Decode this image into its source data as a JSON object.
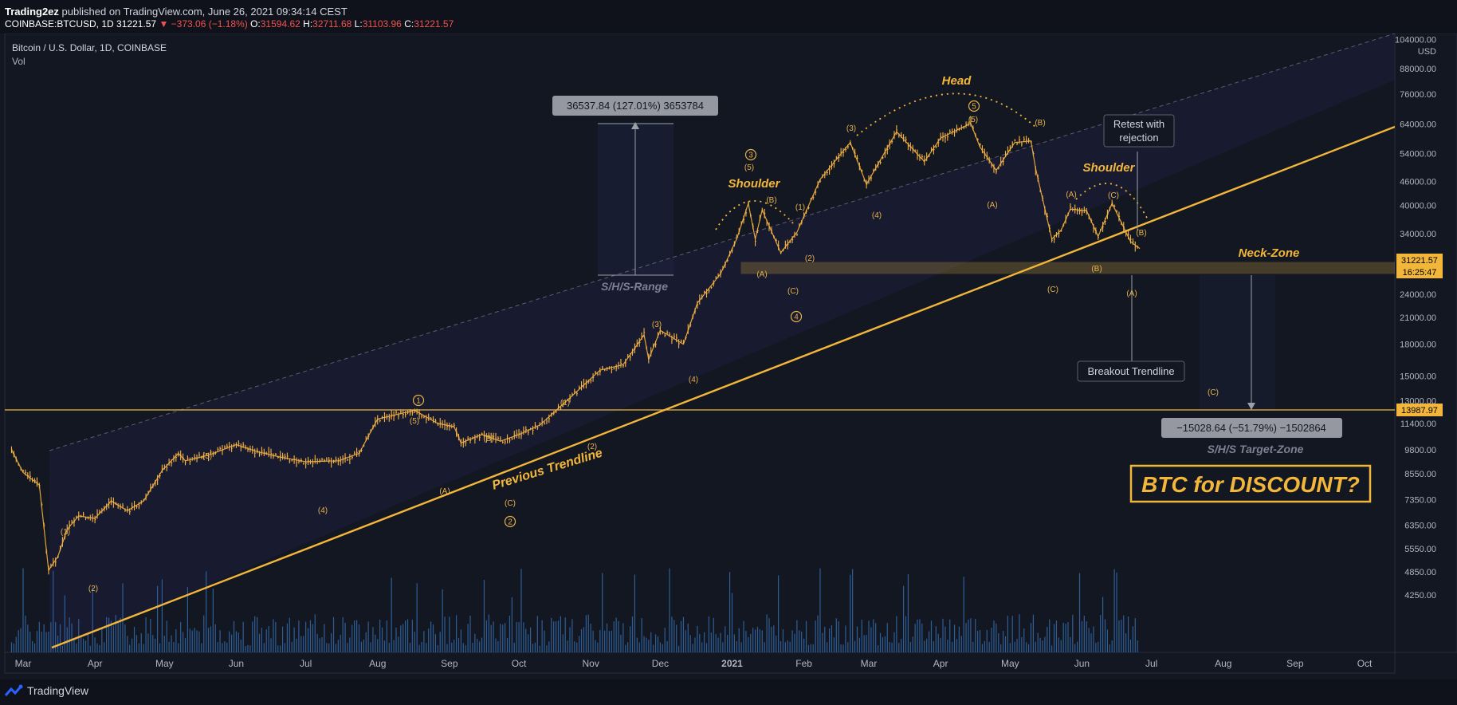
{
  "header": {
    "publisher": "Trading2ez",
    "published_text": "published on TradingView.com, June 26, 2021 09:34:14 CEST",
    "symbol_label": "COINBASE:BTCUSD, 1D",
    "last": "31221.57",
    "change": "▼ −373.06 (−1.18%)",
    "open_label": "O:",
    "open": "31594.62",
    "high_label": "H:",
    "high": "32711.68",
    "low_label": "L:",
    "low": "31103.96",
    "close_label": "C:",
    "close": "31221.57"
  },
  "legend": {
    "title": "Bitcoin / U.S. Dollar, 1D, COINBASE",
    "indicator": "Vol"
  },
  "colors": {
    "price": "#f5b342",
    "trendline": "#f2b73a",
    "volume": "#2e5e96",
    "annotation": "#e6b24a",
    "background": "#131722"
  },
  "chart_data": {
    "type": "line",
    "title": "Bitcoin / U.S. Dollar, 1D, COINBASE",
    "y_scale": "log",
    "y_unit": "USD",
    "y_ticks": [
      "104000.00",
      "88000.00",
      "76000.00",
      "64000.00",
      "54000.00",
      "46000.00",
      "40000.00",
      "34000.00",
      "28000.00",
      "24000.00",
      "21000.00",
      "18000.00",
      "15000.00",
      "13000.00",
      "11400.00",
      "9800.00",
      "8550.00",
      "7350.00",
      "6350.00",
      "5550.00",
      "4850.00",
      "4250.00"
    ],
    "x_ticks": [
      "Mar",
      "Apr",
      "May",
      "Jun",
      "Jul",
      "Aug",
      "Sep",
      "Oct",
      "Nov",
      "Dec",
      "2021",
      "Feb",
      "Mar",
      "Apr",
      "May",
      "Jun",
      "Jul",
      "Aug",
      "Sep",
      "Oct"
    ],
    "series": [
      {
        "values": [
          [
            "2020-02-25",
            9800
          ],
          [
            "2020-03-01",
            8600
          ],
          [
            "2020-03-08",
            8000
          ],
          [
            "2020-03-12",
            4900
          ],
          [
            "2020-03-16",
            5300
          ],
          [
            "2020-03-20",
            6200
          ],
          [
            "2020-03-25",
            6700
          ],
          [
            "2020-04-01",
            6600
          ],
          [
            "2020-04-08",
            7300
          ],
          [
            "2020-04-15",
            6900
          ],
          [
            "2020-04-22",
            7300
          ],
          [
            "2020-04-30",
            8700
          ],
          [
            "2020-05-07",
            9600
          ],
          [
            "2020-05-10",
            9200
          ],
          [
            "2020-05-20",
            9500
          ],
          [
            "2020-06-01",
            10100
          ],
          [
            "2020-06-10",
            9700
          ],
          [
            "2020-06-20",
            9400
          ],
          [
            "2020-07-01",
            9150
          ],
          [
            "2020-07-15",
            9200
          ],
          [
            "2020-07-24",
            9600
          ],
          [
            "2020-08-01",
            11700
          ],
          [
            "2020-08-17",
            12300
          ],
          [
            "2020-08-27",
            11400
          ],
          [
            "2020-09-03",
            11200
          ],
          [
            "2020-09-06",
            10200
          ],
          [
            "2020-09-15",
            10700
          ],
          [
            "2020-09-23",
            10300
          ],
          [
            "2020-10-01",
            10700
          ],
          [
            "2020-10-10",
            11300
          ],
          [
            "2020-10-21",
            12900
          ],
          [
            "2020-11-05",
            15500
          ],
          [
            "2020-11-15",
            16000
          ],
          [
            "2020-11-24",
            19000
          ],
          [
            "2020-11-26",
            16500
          ],
          [
            "2020-12-01",
            19500
          ],
          [
            "2020-12-11",
            18000
          ],
          [
            "2020-12-17",
            22800
          ],
          [
            "2020-12-27",
            27000
          ],
          [
            "2021-01-03",
            33000
          ],
          [
            "2021-01-08",
            40500
          ],
          [
            "2021-01-11",
            33000
          ],
          [
            "2021-01-14",
            39000
          ],
          [
            "2021-01-22",
            30500
          ],
          [
            "2021-01-29",
            34300
          ],
          [
            "2021-02-08",
            46500
          ],
          [
            "2021-02-21",
            57500
          ],
          [
            "2021-02-28",
            45200
          ],
          [
            "2021-03-13",
            61200
          ],
          [
            "2021-03-25",
            51500
          ],
          [
            "2021-04-01",
            59000
          ],
          [
            "2021-04-14",
            64200
          ],
          [
            "2021-04-18",
            56000
          ],
          [
            "2021-04-25",
            49000
          ],
          [
            "2021-05-03",
            57500
          ],
          [
            "2021-05-10",
            58000
          ],
          [
            "2021-05-12",
            49500
          ],
          [
            "2021-05-19",
            33000
          ],
          [
            "2021-05-23",
            34700
          ],
          [
            "2021-05-27",
            39200
          ],
          [
            "2021-06-03",
            38800
          ],
          [
            "2021-06-08",
            33500
          ],
          [
            "2021-06-14",
            40500
          ],
          [
            "2021-06-22",
            32500
          ],
          [
            "2021-06-26",
            31221.57
          ]
        ]
      }
    ],
    "current_price_label": "31221.57",
    "countdown_label": "16:25:47",
    "support_level_label": "13987.97",
    "measure_top": "36537.84 (127.01%) 3653784",
    "measure_bottom": "−15028.64 (−51.79%) −1502864"
  },
  "annotations": {
    "head": "Head",
    "shoulder_left": "Shoulder",
    "shoulder_right": "Shoulder",
    "neck_zone": "Neck-Zone",
    "shs_range": "S/H/S-Range",
    "shs_target": "S/H/S Target-Zone",
    "previous_trendline": "Previous Trendline",
    "retest_line1": "Retest with",
    "retest_line2": "rejection",
    "breakout": "Breakout Trendline",
    "discount": "BTC for DISCOUNT?",
    "waves": {
      "w_1": "(1)",
      "w_2": "(2)",
      "w_3": "(3)",
      "w_4": "(4)",
      "w_5": "(5)",
      "w_A": "(A)",
      "w_B": "(B)",
      "w_C": "(C)",
      "c1": "1",
      "c2": "2",
      "c3": "3",
      "c4": "4",
      "c5": "5"
    }
  },
  "footer": {
    "brand": "TradingView"
  }
}
